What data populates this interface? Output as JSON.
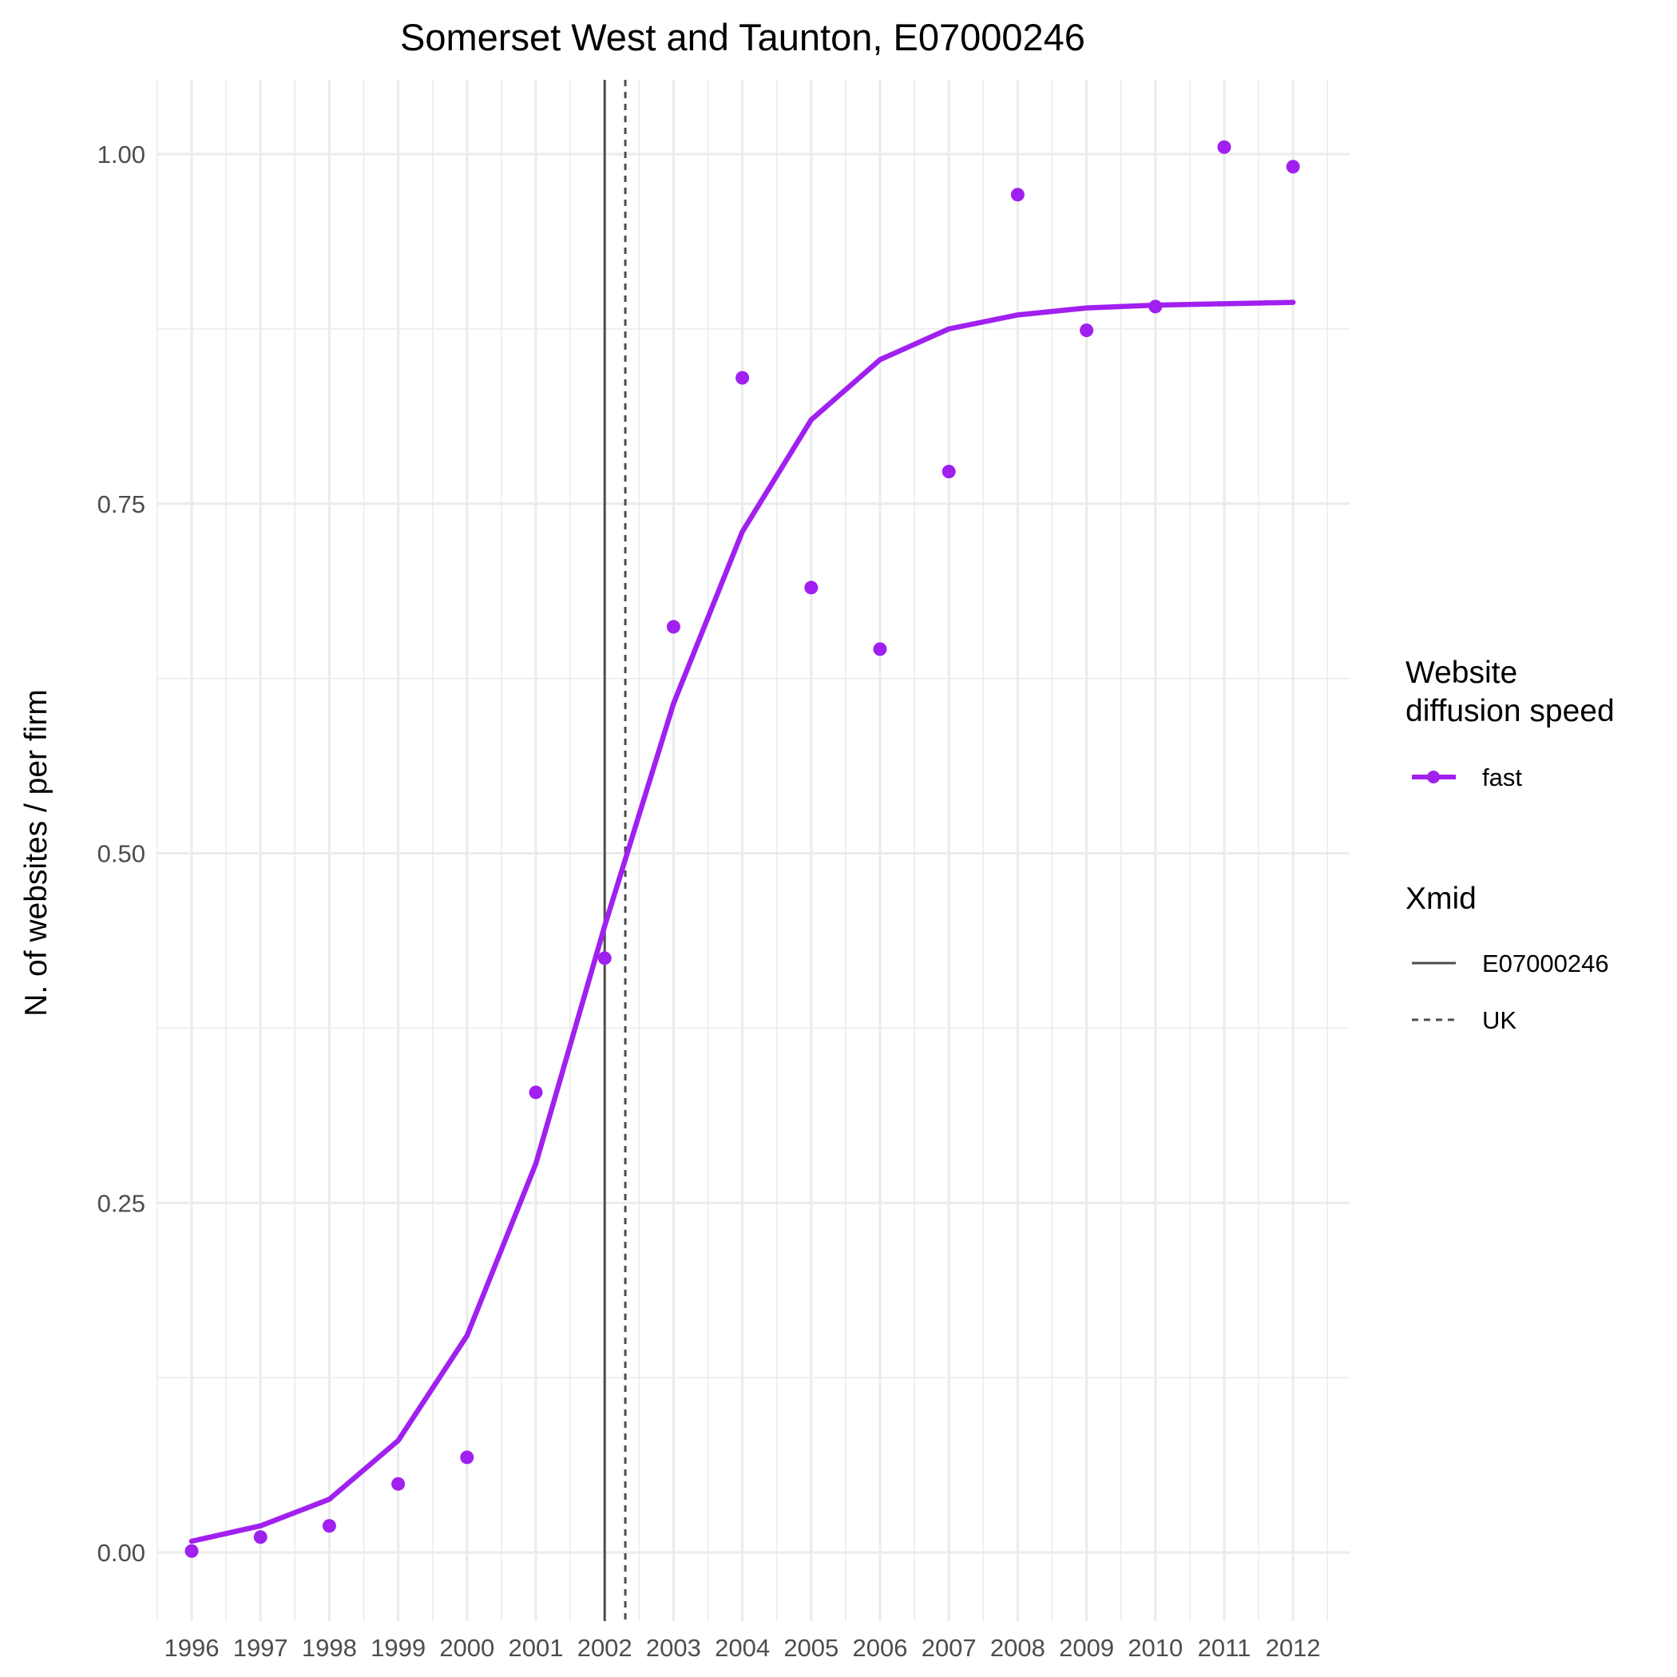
{
  "chart_data": {
    "type": "line",
    "title": "Somerset West and Taunton, E07000246",
    "xlabel": "",
    "ylabel": "N. of websites / per firm",
    "x": [
      1996,
      1997,
      1998,
      1999,
      2000,
      2001,
      2002,
      2003,
      2004,
      2005,
      2006,
      2007,
      2008,
      2009,
      2010,
      2011,
      2012
    ],
    "x_tick_labels": [
      "1996",
      "1997",
      "1998",
      "1999",
      "2000",
      "2001",
      "2002",
      "2003",
      "2004",
      "2005",
      "2006",
      "2007",
      "2008",
      "2009",
      "2010",
      "2011",
      "2012"
    ],
    "y_ticks": [
      0.0,
      0.25,
      0.5,
      0.75,
      1.0
    ],
    "y_tick_labels": [
      "0.00",
      "0.25",
      "0.50",
      "0.75",
      "1.00"
    ],
    "xlim": [
      1995.5,
      2012.5
    ],
    "ylim": [
      -0.045,
      1.055
    ],
    "grid": true,
    "series": [
      {
        "name": "fast",
        "color": "#a020f0",
        "line": [
          0.008,
          0.019,
          0.038,
          0.08,
          0.155,
          0.278,
          0.448,
          0.607,
          0.73,
          0.81,
          0.853,
          0.875,
          0.885,
          0.89,
          0.892,
          0.893,
          0.894
        ],
        "points": [
          0.001,
          0.011,
          0.019,
          0.049,
          0.068,
          0.329,
          0.425,
          0.662,
          0.84,
          0.69,
          0.646,
          0.773,
          0.971,
          0.874,
          0.891,
          1.005,
          0.991
        ]
      }
    ],
    "vlines": [
      {
        "name": "E07000246",
        "x": 2002.0,
        "style": "solid",
        "color": "#4d4d4d"
      },
      {
        "name": "UK",
        "x": 2002.3,
        "style": "dashed",
        "color": "#4d4d4d"
      }
    ],
    "legend": {
      "placement": "right",
      "groups": [
        {
          "title_lines": [
            "Website",
            "diffusion speed"
          ],
          "items": [
            {
              "label": "fast",
              "kind": "line-point",
              "color": "#a020f0"
            }
          ]
        },
        {
          "title_lines": [
            "Xmid"
          ],
          "items": [
            {
              "label": "E07000246",
              "kind": "solid-line",
              "color": "#4d4d4d"
            },
            {
              "label": "UK",
              "kind": "dashed-line",
              "color": "#4d4d4d"
            }
          ]
        }
      ]
    }
  }
}
